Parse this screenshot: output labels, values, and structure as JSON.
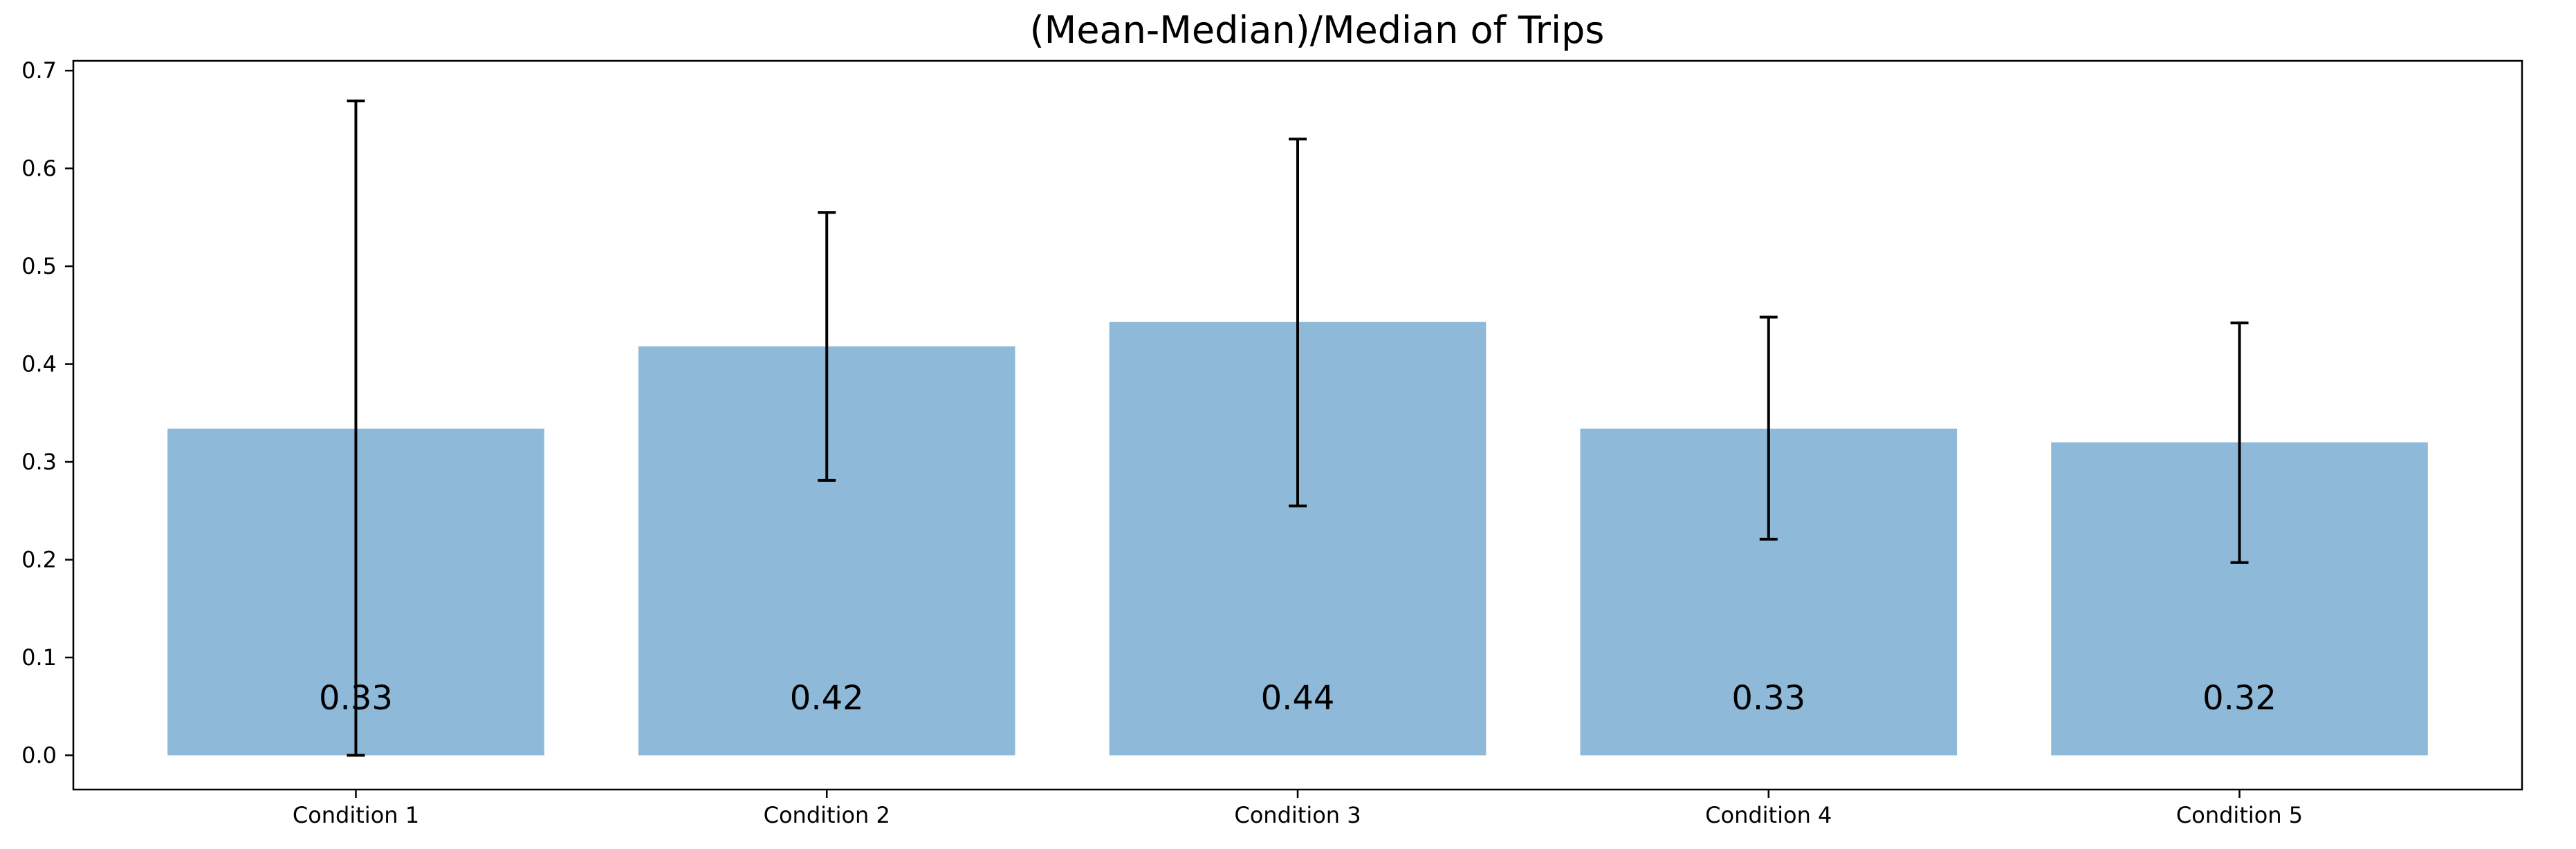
{
  "chart_data": {
    "type": "bar",
    "title": "(Mean-Median)/Median of Trips",
    "xlabel": "",
    "ylabel": "",
    "categories": [
      "Condition 1",
      "Condition 2",
      "Condition 3",
      "Condition 4",
      "Condition 5"
    ],
    "values": [
      0.334,
      0.418,
      0.443,
      0.334,
      0.32
    ],
    "error_low": [
      0.0,
      0.281,
      0.255,
      0.221,
      0.197
    ],
    "error_high": [
      0.669,
      0.555,
      0.63,
      0.448,
      0.442
    ],
    "value_labels": [
      "0.33",
      "0.42",
      "0.44",
      "0.33",
      "0.32"
    ],
    "ylim": [
      -0.035,
      0.71
    ],
    "yticks": [
      0.0,
      0.1,
      0.2,
      0.3,
      0.4,
      0.5,
      0.6,
      0.7
    ],
    "ytick_labels": [
      "0.0",
      "0.1",
      "0.2",
      "0.3",
      "0.4",
      "0.5",
      "0.6",
      "0.7"
    ],
    "grid": false,
    "colors": {
      "bar": "#8fb9d9",
      "error_bar": "#000000",
      "axes": "#000000",
      "text": "#000000"
    }
  }
}
